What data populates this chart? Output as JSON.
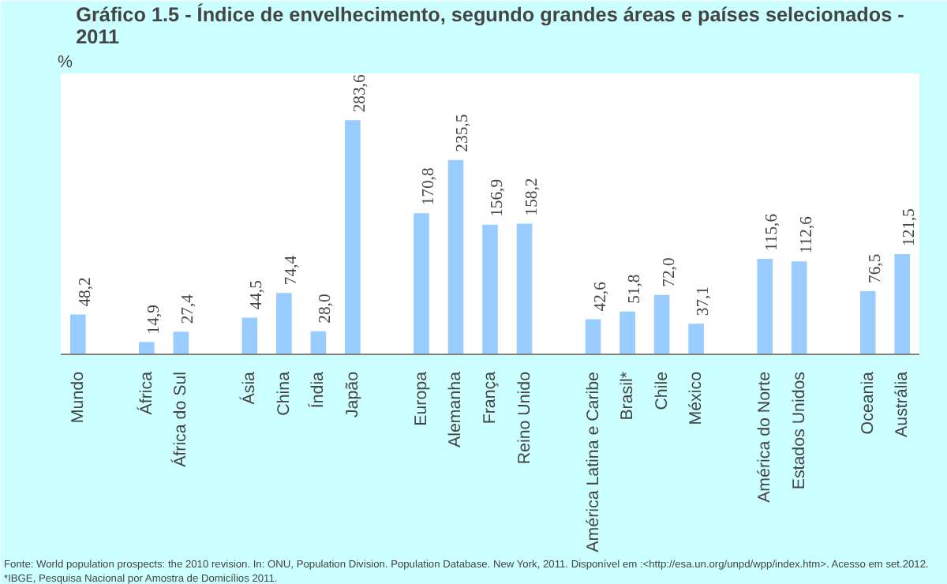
{
  "chart_data": {
    "type": "bar",
    "title": "Gráfico 1.5 - Índice de envelhecimento, segundo grandes áreas e países selecionados -\n2011",
    "ylabel": "%",
    "categories": [
      "Mundo",
      null,
      "África",
      "África do Sul",
      null,
      "Ásia",
      "China",
      "Índia",
      "Japão",
      null,
      "Europa",
      "Alemanha",
      "França",
      "Reino Unido",
      null,
      "América Latina e Caribe",
      "Brasil*",
      "Chile",
      "México",
      null,
      "América do Norte",
      "Estados Unidos",
      null,
      "Oceania",
      "Austrália"
    ],
    "values": [
      48.2,
      null,
      14.9,
      27.4,
      null,
      44.5,
      74.4,
      28.0,
      283.6,
      null,
      170.8,
      235.5,
      156.9,
      158.2,
      null,
      42.6,
      51.8,
      72.0,
      37.1,
      null,
      115.6,
      112.6,
      null,
      76.5,
      121.5
    ],
    "value_labels": [
      "48,2",
      null,
      "14,9",
      "27,4",
      null,
      "44,5",
      "74,4",
      "28,0",
      "283,6",
      null,
      "170,8",
      "235,5",
      "156,9",
      "158,2",
      null,
      "42,6",
      "51,8",
      "72,0",
      "37,1",
      null,
      "115,6",
      "112,6",
      null,
      "76,5",
      "121,5"
    ],
    "color": "#99ccff",
    "annotations": [
      "Fonte: World population prospects: the 2010 revision.  In: ONU, Population Division. Population Database. New York, 2011. Disponível  em :<http://esa.un.org/unpd/wpp/index.htm>.  Acesso em set.2012.",
      "*IBGE, Pesquisa Nacional  por Amostra de Domicílios  2011."
    ],
    "grid": false
  }
}
